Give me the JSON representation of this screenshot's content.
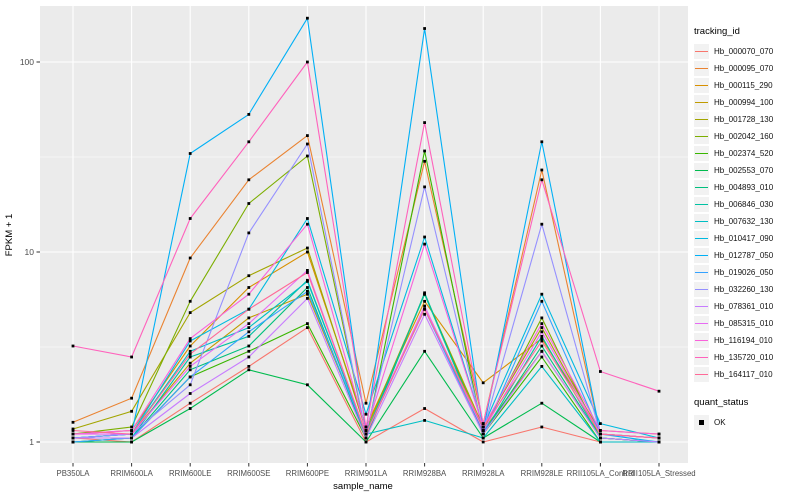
{
  "figure": {
    "background": "#FFFFFF",
    "panel_background": "#EBEBEB",
    "grid_color": "#FFFFFF",
    "tick_label_color": "#4D4D4D",
    "axis_title_color": "#000000",
    "legend_key_background": "#F2F2F2",
    "point_marker_color": "#000000"
  },
  "axes": {
    "x_title": "sample_name",
    "y_title": "FPKM + 1"
  },
  "legend": {
    "title": "tracking_id"
  },
  "quant_legend": {
    "title": "quant_status",
    "items": [
      {
        "label": "OK",
        "marker": "black-square"
      }
    ]
  },
  "chart_data": {
    "type": "line",
    "title": "",
    "xlabel": "sample_name",
    "ylabel": "FPKM + 1",
    "y_scale": "log10",
    "ylim": [
      0.93,
      200
    ],
    "y_ticks": [
      1,
      10,
      100
    ],
    "y_major_gridlines": [
      1,
      10,
      100
    ],
    "y_minor_gridlines": [
      3.1623,
      31.623
    ],
    "grid": true,
    "legend_position": "right",
    "legend_title": "tracking_id",
    "point_marker": "black-square",
    "categories": [
      "PB350LA",
      "RRIM600LA",
      "RRIM600LE",
      "RRIM600SE",
      "RRIM600PE",
      "RRIM901LA",
      "RRIM928BA",
      "RRIM928LA",
      "RRIM928LE",
      "RRII105LA_Control",
      "RRII105LA_Stressed"
    ],
    "series": [
      {
        "name": "Hb_000070_070",
        "color": "#F8766D",
        "values": [
          1.05,
          1.0,
          1.6,
          2.5,
          4.0,
          1.0,
          1.5,
          1.0,
          1.2,
          1.0,
          1.0
        ]
      },
      {
        "name": "Hb_000095_070",
        "color": "#EA8331",
        "values": [
          1.27,
          1.7,
          9.3,
          24,
          41,
          1.6,
          30,
          1.25,
          27,
          1.1,
          1.05
        ]
      },
      {
        "name": "Hb_000115_290",
        "color": "#D89000",
        "values": [
          1.1,
          1.15,
          3.2,
          6.5,
          10,
          1.2,
          5.5,
          2.05,
          3.5,
          1.15,
          1.1
        ]
      },
      {
        "name": "Hb_000994_100",
        "color": "#C09B00",
        "values": [
          1.05,
          1.1,
          2.6,
          4.5,
          6.0,
          1.1,
          5.0,
          1.15,
          3.0,
          1.05,
          1.0
        ]
      },
      {
        "name": "Hb_001728_130",
        "color": "#A3A500",
        "values": [
          1.17,
          1.45,
          4.8,
          7.5,
          10.5,
          1.15,
          6.0,
          1.2,
          4.0,
          1.1,
          1.05
        ]
      },
      {
        "name": "Hb_002042_160",
        "color": "#7CAE00",
        "values": [
          1.1,
          1.2,
          5.5,
          18,
          32,
          1.1,
          6.0,
          1.15,
          4.5,
          1.05,
          1.0
        ]
      },
      {
        "name": "Hb_002374_520",
        "color": "#39B600",
        "values": [
          1.0,
          1.05,
          2.2,
          3.0,
          4.2,
          1.05,
          34,
          1.1,
          2.8,
          1.0,
          1.0
        ]
      },
      {
        "name": "Hb_002553_070",
        "color": "#00BB4E",
        "values": [
          1.0,
          1.0,
          1.5,
          2.4,
          2.0,
          1.0,
          3.0,
          1.05,
          1.6,
          1.0,
          1.0
        ]
      },
      {
        "name": "Hb_004893_010",
        "color": "#00BF7D",
        "values": [
          1.05,
          1.05,
          2.4,
          3.2,
          6.5,
          1.05,
          6.1,
          1.1,
          3.2,
          1.05,
          1.0
        ]
      },
      {
        "name": "Hb_006846_030",
        "color": "#00C1A3",
        "values": [
          1.0,
          1.05,
          2.8,
          3.6,
          7.1,
          1.1,
          6.0,
          1.1,
          3.6,
          1.05,
          1.0
        ]
      },
      {
        "name": "Hb_007632_130",
        "color": "#00BFC4",
        "values": [
          1.05,
          1.1,
          3.0,
          4.0,
          7.0,
          1.1,
          1.3,
          1.05,
          2.5,
          1.0,
          1.0
        ]
      },
      {
        "name": "Hb_010417_090",
        "color": "#00BAE0",
        "values": [
          1.05,
          1.1,
          3.4,
          5.0,
          15,
          1.4,
          12,
          1.2,
          6.0,
          1.25,
          1.05
        ]
      },
      {
        "name": "Hb_012787_050",
        "color": "#00B0F6",
        "values": [
          1.05,
          1.1,
          33,
          53,
          170,
          1.15,
          150,
          1.15,
          38,
          1.1,
          1.0
        ]
      },
      {
        "name": "Hb_019026_050",
        "color": "#35A2FF",
        "values": [
          1.0,
          1.05,
          2.2,
          3.8,
          6.2,
          1.1,
          5.0,
          1.1,
          5.5,
          1.1,
          1.05
        ]
      },
      {
        "name": "Hb_032260_130",
        "color": "#9590FF",
        "values": [
          1.05,
          1.1,
          2.0,
          12.6,
          37,
          1.1,
          22,
          1.15,
          14,
          1.1,
          1.05
        ]
      },
      {
        "name": "Hb_078361_010",
        "color": "#C77CFF",
        "values": [
          1.05,
          1.05,
          1.8,
          2.8,
          5.7,
          1.05,
          4.7,
          1.1,
          3.0,
          1.05,
          1.0
        ]
      },
      {
        "name": "Hb_085315_010",
        "color": "#E76BF3",
        "values": [
          1.1,
          1.1,
          2.5,
          4.2,
          8.0,
          1.1,
          5.2,
          1.15,
          3.8,
          1.1,
          1.05
        ]
      },
      {
        "name": "Hb_116194_010",
        "color": "#FA62DB",
        "values": [
          1.1,
          1.15,
          3.5,
          6.0,
          14,
          1.15,
          11,
          1.2,
          4.2,
          1.15,
          1.1
        ]
      },
      {
        "name": "Hb_135720_010",
        "color": "#FF62BC",
        "values": [
          3.2,
          2.8,
          15,
          38,
          100,
          1.2,
          48,
          1.25,
          24,
          2.35,
          1.85
        ]
      },
      {
        "name": "Hb_164117_010",
        "color": "#FF6A98",
        "values": [
          1.15,
          1.1,
          2.9,
          5.0,
          7.8,
          1.1,
          5.0,
          1.2,
          3.4,
          1.1,
          1.05
        ]
      }
    ]
  }
}
